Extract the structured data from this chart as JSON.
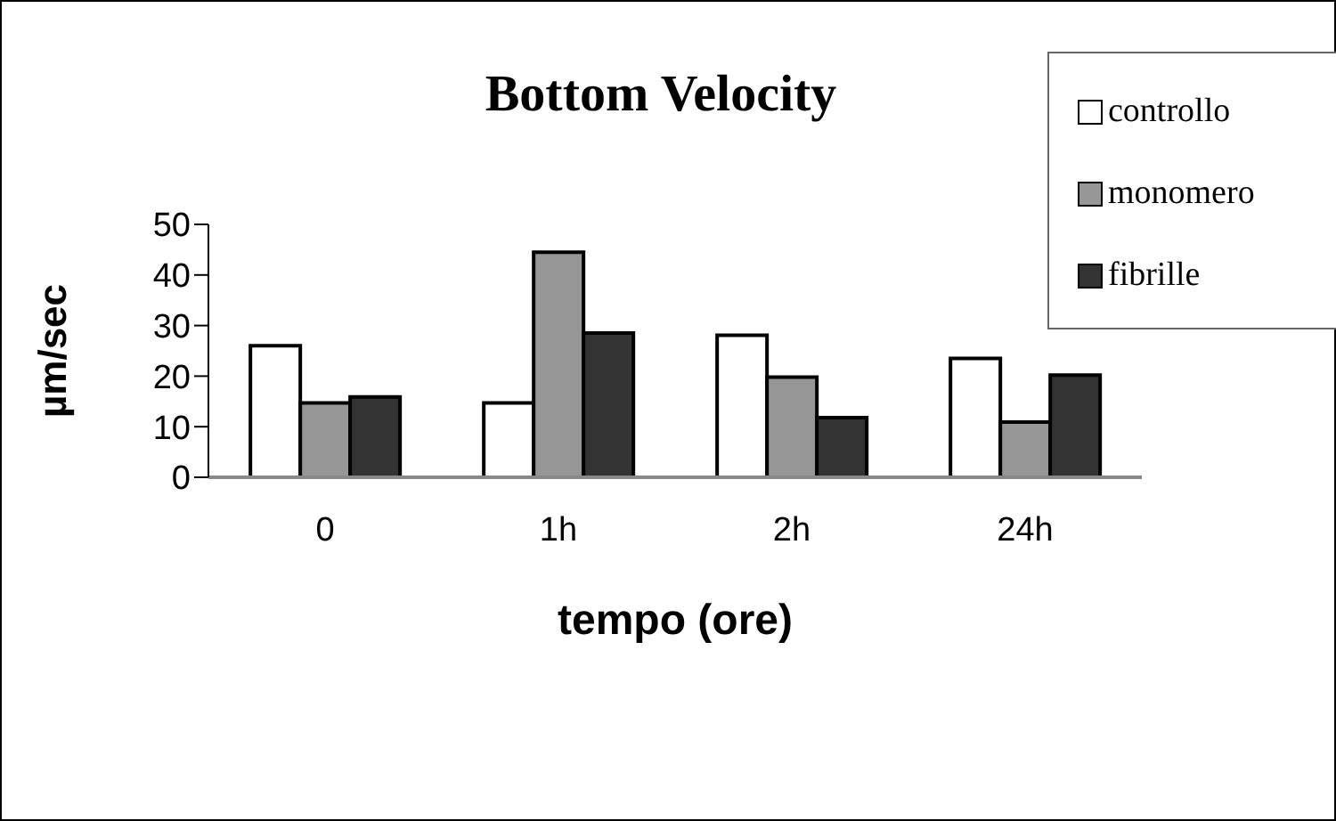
{
  "chart_data": {
    "type": "bar",
    "title": "Bottom Velocity",
    "xlabel": "tempo (ore)",
    "ylabel": "µm/sec",
    "categories": [
      "0",
      "1h",
      "2h",
      "24h"
    ],
    "series": [
      {
        "name": "controllo",
        "color": "#ffffff",
        "values": [
          26,
          14.7,
          28.1,
          23.5
        ]
      },
      {
        "name": "monomero",
        "color": "#969696",
        "values": [
          14.7,
          44.5,
          19.8,
          10.9
        ]
      },
      {
        "name": "fibrille",
        "color": "#333333",
        "values": [
          15.9,
          28.5,
          11.8,
          20.2
        ]
      }
    ],
    "ylim": [
      0,
      50
    ],
    "yticks": [
      0,
      10,
      20,
      30,
      40,
      50
    ],
    "grid": false,
    "legend": "top right"
  }
}
